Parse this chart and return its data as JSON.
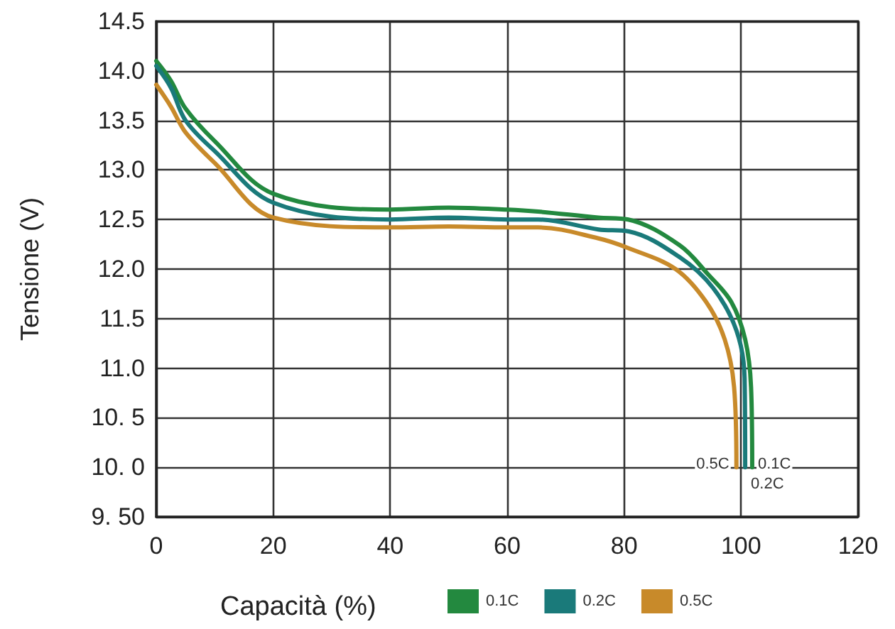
{
  "chart_data": {
    "type": "line",
    "xlabel": "Capacità (%)",
    "ylabel": "Tensione (V)",
    "xlim": [
      0,
      120
    ],
    "xticks": [
      0,
      20,
      40,
      60,
      80,
      100,
      120
    ],
    "ylim": [
      9.5,
      14.5
    ],
    "yticks": [
      {
        "value": 9.5,
        "label": "9. 50"
      },
      {
        "value": 10,
        "label": "10. 0"
      },
      {
        "value": 10.5,
        "label": "10. 5"
      },
      {
        "value": 11,
        "label": "11.0"
      },
      {
        "value": 11.5,
        "label": "11.5"
      },
      {
        "value": 12,
        "label": "12.0"
      },
      {
        "value": 12.5,
        "label": "12.5"
      },
      {
        "value": 13,
        "label": "13.0"
      },
      {
        "value": 13.5,
        "label": "13.5"
      },
      {
        "value": 14,
        "label": "14.0"
      },
      {
        "value": 14.5,
        "label": "14.5"
      }
    ],
    "grid": true,
    "legend": "bottom",
    "marker": "none",
    "line_style": "solid",
    "series": [
      {
        "name": "0.1C",
        "color": "#23893f",
        "x": [
          0,
          2.5,
          5,
          10,
          20,
          40,
          50,
          60,
          65.3,
          75.6,
          80.7,
          89.5,
          94.3,
          98.3,
          100.7,
          101.7,
          101.9
        ],
        "values": [
          14.1,
          13.9,
          13.62,
          13.29,
          12.76,
          12.6,
          12.62,
          12.6,
          12.58,
          12.52,
          12.5,
          12.24,
          11.95,
          11.67,
          11.29,
          10.81,
          10.0
        ]
      },
      {
        "name": "0.2C",
        "color": "#1a7a7a",
        "x": [
          0,
          2.5,
          5,
          10,
          20,
          40,
          50,
          60,
          65.3,
          75.6,
          80.8,
          89.5,
          95.2,
          99.2,
          100.6,
          100.7
        ],
        "values": [
          14.05,
          13.83,
          13.5,
          13.19,
          12.67,
          12.5,
          12.52,
          12.5,
          12.5,
          12.4,
          12.38,
          12.12,
          11.81,
          11.38,
          10.9,
          10.0
        ]
      },
      {
        "name": "0.5C",
        "color": "#c88a2a",
        "x": [
          0,
          2.5,
          5,
          10,
          20,
          40,
          50,
          60,
          65.3,
          75.6,
          80.8,
          88.8,
          94,
          97.2,
          98.8,
          99.2
        ],
        "values": [
          13.86,
          13.64,
          13.38,
          13.07,
          12.52,
          12.42,
          12.43,
          12.42,
          12.42,
          12.31,
          12.21,
          12.0,
          11.67,
          11.29,
          10.81,
          10.0
        ]
      }
    ],
    "annotations": [
      {
        "text": "0.5C",
        "x": 99.2,
        "y": 10.0
      },
      {
        "text": "0.1C",
        "x": 101.9,
        "y": 10.0
      },
      {
        "text": "0.2C",
        "x": 100.7,
        "y": 10.0
      }
    ]
  }
}
